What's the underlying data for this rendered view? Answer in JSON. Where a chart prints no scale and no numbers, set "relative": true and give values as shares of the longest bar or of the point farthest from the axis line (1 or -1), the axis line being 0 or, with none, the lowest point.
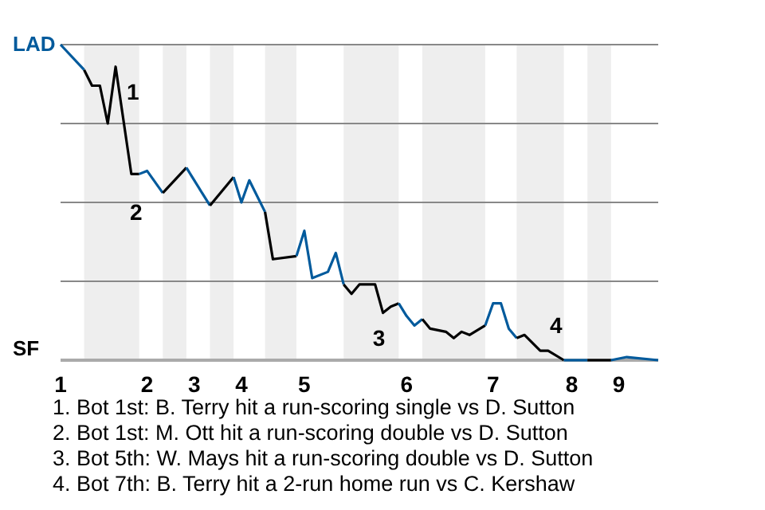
{
  "chart_data": {
    "type": "line",
    "marker": "none",
    "relative": true,
    "categories": [
      "1",
      null,
      null,
      null,
      null,
      null,
      null,
      null,
      null,
      null,
      null,
      "2",
      null,
      null,
      null,
      null,
      null,
      "3",
      null,
      null,
      null,
      null,
      null,
      "4",
      null,
      null,
      null,
      null,
      null,
      null,
      null,
      "5",
      null,
      null,
      null,
      null,
      null,
      null,
      null,
      null,
      null,
      null,
      null,
      null,
      "6",
      null,
      null,
      null,
      null,
      null,
      null,
      null,
      null,
      null,
      null,
      "7",
      null,
      null,
      null,
      null,
      null,
      null,
      null,
      null,
      null,
      "8",
      null,
      null,
      null,
      null,
      null,
      "9",
      null,
      null,
      null,
      null,
      null
    ],
    "series": [
      {
        "color": "#005a9c",
        "values": [
          1,
          null,
          null,
          0.92,
          null,
          null,
          null,
          null,
          null,
          null,
          null,
          null,
          null,
          null,
          null,
          null,
          null,
          null,
          null,
          null,
          null,
          null,
          null,
          null,
          null,
          null,
          null,
          null,
          null,
          null,
          null,
          null,
          null,
          null,
          null,
          null,
          null,
          null,
          null,
          null,
          null,
          null,
          null,
          null,
          null,
          null,
          null,
          null,
          null,
          null,
          null,
          null,
          null,
          null,
          null,
          null,
          null,
          null,
          null,
          null,
          null,
          null,
          null,
          null,
          null,
          null,
          null,
          null,
          null,
          null,
          null,
          null,
          null,
          null,
          null,
          null,
          null
        ]
      },
      {
        "color": "#000000",
        "values": [
          null,
          null,
          null,
          0.92,
          0.87,
          0.87,
          0.75,
          0.93,
          null,
          0.59,
          0.59,
          null,
          null,
          null,
          null,
          null,
          null,
          null,
          null,
          null,
          null,
          null,
          null,
          null,
          null,
          null,
          null,
          null,
          null,
          null,
          null,
          null,
          null,
          null,
          null,
          null,
          null,
          null,
          null,
          null,
          null,
          null,
          null,
          null,
          null,
          null,
          null,
          null,
          null,
          null,
          null,
          null,
          null,
          null,
          null,
          null,
          null,
          null,
          null,
          null,
          null,
          null,
          null,
          null,
          null,
          null,
          null,
          null,
          null,
          null,
          null,
          null,
          null,
          null,
          null,
          null,
          null
        ]
      },
      {
        "color": "#005a9c",
        "values": [
          null,
          null,
          null,
          null,
          null,
          null,
          null,
          null,
          null,
          null,
          0.59,
          0.6,
          null,
          0.53,
          null,
          null,
          null,
          null,
          null,
          null,
          null,
          null,
          null,
          null,
          null,
          null,
          null,
          null,
          null,
          null,
          null,
          null,
          null,
          null,
          null,
          null,
          null,
          null,
          null,
          null,
          null,
          null,
          null,
          null,
          null,
          null,
          null,
          null,
          null,
          null,
          null,
          null,
          null,
          null,
          null,
          null,
          null,
          null,
          null,
          null,
          null,
          null,
          null,
          null,
          null,
          null,
          null,
          null,
          null,
          null,
          null,
          null,
          null,
          null,
          null,
          null,
          null
        ]
      },
      {
        "color": "#000000",
        "values": [
          null,
          null,
          null,
          null,
          null,
          null,
          null,
          null,
          null,
          null,
          null,
          null,
          null,
          0.53,
          null,
          null,
          0.61,
          null,
          null,
          null,
          null,
          null,
          null,
          null,
          null,
          null,
          null,
          null,
          null,
          null,
          null,
          null,
          null,
          null,
          null,
          null,
          null,
          null,
          null,
          null,
          null,
          null,
          null,
          null,
          null,
          null,
          null,
          null,
          null,
          null,
          null,
          null,
          null,
          null,
          null,
          null,
          null,
          null,
          null,
          null,
          null,
          null,
          null,
          null,
          null,
          null,
          null,
          null,
          null,
          null,
          null,
          null,
          null,
          null,
          null,
          null,
          null
        ]
      },
      {
        "color": "#005a9c",
        "values": [
          null,
          null,
          null,
          null,
          null,
          null,
          null,
          null,
          null,
          null,
          null,
          null,
          null,
          null,
          null,
          null,
          0.61,
          null,
          null,
          0.49,
          null,
          null,
          null,
          null,
          null,
          null,
          null,
          null,
          null,
          null,
          null,
          null,
          null,
          null,
          null,
          null,
          null,
          null,
          null,
          null,
          null,
          null,
          null,
          null,
          null,
          null,
          null,
          null,
          null,
          null,
          null,
          null,
          null,
          null,
          null,
          null,
          null,
          null,
          null,
          null,
          null,
          null,
          null,
          null,
          null,
          null,
          null,
          null,
          null,
          null,
          null,
          null,
          null,
          null,
          null,
          null,
          null
        ]
      },
      {
        "color": "#000000",
        "values": [
          null,
          null,
          null,
          null,
          null,
          null,
          null,
          null,
          null,
          null,
          null,
          null,
          null,
          null,
          null,
          null,
          null,
          null,
          null,
          0.49,
          null,
          null,
          0.58,
          null,
          null,
          null,
          null,
          null,
          null,
          null,
          null,
          null,
          null,
          null,
          null,
          null,
          null,
          null,
          null,
          null,
          null,
          null,
          null,
          null,
          null,
          null,
          null,
          null,
          null,
          null,
          null,
          null,
          null,
          null,
          null,
          null,
          null,
          null,
          null,
          null,
          null,
          null,
          null,
          null,
          null,
          null,
          null,
          null,
          null,
          null,
          null,
          null,
          null,
          null,
          null,
          null,
          null
        ]
      },
      {
        "color": "#005a9c",
        "values": [
          null,
          null,
          null,
          null,
          null,
          null,
          null,
          null,
          null,
          null,
          null,
          null,
          null,
          null,
          null,
          null,
          null,
          null,
          null,
          null,
          null,
          null,
          0.58,
          0.5,
          0.57,
          null,
          0.47,
          null,
          null,
          null,
          null,
          null,
          null,
          null,
          null,
          null,
          null,
          null,
          null,
          null,
          null,
          null,
          null,
          null,
          null,
          null,
          null,
          null,
          null,
          null,
          null,
          null,
          null,
          null,
          null,
          null,
          null,
          null,
          null,
          null,
          null,
          null,
          null,
          null,
          null,
          null,
          null,
          null,
          null,
          null,
          null,
          null,
          null,
          null,
          null,
          null,
          null
        ]
      },
      {
        "color": "#000000",
        "values": [
          null,
          null,
          null,
          null,
          null,
          null,
          null,
          null,
          null,
          null,
          null,
          null,
          null,
          null,
          null,
          null,
          null,
          null,
          null,
          null,
          null,
          null,
          null,
          null,
          null,
          null,
          0.47,
          0.32,
          null,
          null,
          0.33,
          null,
          null,
          null,
          null,
          null,
          null,
          null,
          null,
          null,
          null,
          null,
          null,
          null,
          null,
          null,
          null,
          null,
          null,
          null,
          null,
          null,
          null,
          null,
          null,
          null,
          null,
          null,
          null,
          null,
          null,
          null,
          null,
          null,
          null,
          null,
          null,
          null,
          null,
          null,
          null,
          null,
          null,
          null,
          null,
          null,
          null
        ]
      },
      {
        "color": "#005a9c",
        "values": [
          null,
          null,
          null,
          null,
          null,
          null,
          null,
          null,
          null,
          null,
          null,
          null,
          null,
          null,
          null,
          null,
          null,
          null,
          null,
          null,
          null,
          null,
          null,
          null,
          null,
          null,
          null,
          null,
          null,
          null,
          0.33,
          0.41,
          0.26,
          null,
          0.28,
          0.34,
          0.24,
          null,
          null,
          null,
          null,
          null,
          null,
          null,
          null,
          null,
          null,
          null,
          null,
          null,
          null,
          null,
          null,
          null,
          null,
          null,
          null,
          null,
          null,
          null,
          null,
          null,
          null,
          null,
          null,
          null,
          null,
          null,
          null,
          null,
          null,
          null,
          null,
          null,
          null,
          null,
          null
        ]
      },
      {
        "color": "#000000",
        "values": [
          null,
          null,
          null,
          null,
          null,
          null,
          null,
          null,
          null,
          null,
          null,
          null,
          null,
          null,
          null,
          null,
          null,
          null,
          null,
          null,
          null,
          null,
          null,
          null,
          null,
          null,
          null,
          null,
          null,
          null,
          null,
          null,
          null,
          null,
          null,
          null,
          0.24,
          0.21,
          0.24,
          null,
          0.24,
          0.15,
          0.17,
          0.18,
          null,
          null,
          null,
          null,
          null,
          null,
          null,
          null,
          null,
          null,
          null,
          null,
          null,
          null,
          null,
          null,
          null,
          null,
          null,
          null,
          null,
          null,
          null,
          null,
          null,
          null,
          null,
          null,
          null,
          null,
          null,
          null,
          null
        ]
      },
      {
        "color": "#005a9c",
        "values": [
          null,
          null,
          null,
          null,
          null,
          null,
          null,
          null,
          null,
          null,
          null,
          null,
          null,
          null,
          null,
          null,
          null,
          null,
          null,
          null,
          null,
          null,
          null,
          null,
          null,
          null,
          null,
          null,
          null,
          null,
          null,
          null,
          null,
          null,
          null,
          null,
          null,
          null,
          null,
          null,
          null,
          null,
          null,
          0.18,
          0.14,
          0.11,
          0.13,
          null,
          null,
          null,
          null,
          null,
          null,
          null,
          null,
          null,
          null,
          null,
          null,
          null,
          null,
          null,
          null,
          null,
          null,
          null,
          null,
          null,
          null,
          null,
          null,
          null,
          null,
          null,
          null,
          null,
          null
        ]
      },
      {
        "color": "#000000",
        "values": [
          null,
          null,
          null,
          null,
          null,
          null,
          null,
          null,
          null,
          null,
          null,
          null,
          null,
          null,
          null,
          null,
          null,
          null,
          null,
          null,
          null,
          null,
          null,
          null,
          null,
          null,
          null,
          null,
          null,
          null,
          null,
          null,
          null,
          null,
          null,
          null,
          null,
          null,
          null,
          null,
          null,
          null,
          null,
          null,
          null,
          null,
          0.13,
          0.1,
          null,
          0.09,
          0.07,
          0.09,
          0.08,
          null,
          0.11,
          null,
          null,
          null,
          null,
          null,
          null,
          null,
          null,
          null,
          null,
          null,
          null,
          null,
          null,
          null,
          null,
          null,
          null,
          null,
          null,
          null,
          null
        ]
      },
      {
        "color": "#005a9c",
        "values": [
          null,
          null,
          null,
          null,
          null,
          null,
          null,
          null,
          null,
          null,
          null,
          null,
          null,
          null,
          null,
          null,
          null,
          null,
          null,
          null,
          null,
          null,
          null,
          null,
          null,
          null,
          null,
          null,
          null,
          null,
          null,
          null,
          null,
          null,
          null,
          null,
          null,
          null,
          null,
          null,
          null,
          null,
          null,
          null,
          null,
          null,
          null,
          null,
          null,
          null,
          null,
          null,
          null,
          null,
          0.11,
          0.18,
          0.18,
          0.1,
          0.07,
          null,
          null,
          null,
          null,
          null,
          null,
          null,
          null,
          null,
          null,
          null,
          null,
          null,
          null,
          null,
          null,
          null,
          null
        ]
      },
      {
        "color": "#000000",
        "values": [
          null,
          null,
          null,
          null,
          null,
          null,
          null,
          null,
          null,
          null,
          null,
          null,
          null,
          null,
          null,
          null,
          null,
          null,
          null,
          null,
          null,
          null,
          null,
          null,
          null,
          null,
          null,
          null,
          null,
          null,
          null,
          null,
          null,
          null,
          null,
          null,
          null,
          null,
          null,
          null,
          null,
          null,
          null,
          null,
          null,
          null,
          null,
          null,
          null,
          null,
          null,
          null,
          null,
          null,
          null,
          null,
          null,
          null,
          0.07,
          0.08,
          null,
          0.03,
          0.03,
          null,
          0,
          null,
          null,
          null,
          null,
          null,
          null,
          null,
          null,
          null,
          null,
          null,
          null
        ]
      },
      {
        "color": "#005a9c",
        "values": [
          null,
          null,
          null,
          null,
          null,
          null,
          null,
          null,
          null,
          null,
          null,
          null,
          null,
          null,
          null,
          null,
          null,
          null,
          null,
          null,
          null,
          null,
          null,
          null,
          null,
          null,
          null,
          null,
          null,
          null,
          null,
          null,
          null,
          null,
          null,
          null,
          null,
          null,
          null,
          null,
          null,
          null,
          null,
          null,
          null,
          null,
          null,
          null,
          null,
          null,
          null,
          null,
          null,
          null,
          null,
          null,
          null,
          null,
          null,
          null,
          null,
          null,
          null,
          null,
          0,
          null,
          null,
          0,
          null,
          null,
          null,
          null,
          null,
          null,
          null,
          null,
          null
        ]
      },
      {
        "color": "#000000",
        "values": [
          null,
          null,
          null,
          null,
          null,
          null,
          null,
          null,
          null,
          null,
          null,
          null,
          null,
          null,
          null,
          null,
          null,
          null,
          null,
          null,
          null,
          null,
          null,
          null,
          null,
          null,
          null,
          null,
          null,
          null,
          null,
          null,
          null,
          null,
          null,
          null,
          null,
          null,
          null,
          null,
          null,
          null,
          null,
          null,
          null,
          null,
          null,
          null,
          null,
          null,
          null,
          null,
          null,
          null,
          null,
          null,
          null,
          null,
          null,
          null,
          null,
          null,
          null,
          null,
          null,
          null,
          null,
          0,
          null,
          null,
          0,
          null,
          null,
          null,
          null,
          null,
          null
        ]
      },
      {
        "color": "#005a9c",
        "values": [
          null,
          null,
          null,
          null,
          null,
          null,
          null,
          null,
          null,
          null,
          null,
          null,
          null,
          null,
          null,
          null,
          null,
          null,
          null,
          null,
          null,
          null,
          null,
          null,
          null,
          null,
          null,
          null,
          null,
          null,
          null,
          null,
          null,
          null,
          null,
          null,
          null,
          null,
          null,
          null,
          null,
          null,
          null,
          null,
          null,
          null,
          null,
          null,
          null,
          null,
          null,
          null,
          null,
          null,
          null,
          null,
          null,
          null,
          null,
          null,
          null,
          null,
          null,
          null,
          null,
          null,
          null,
          null,
          null,
          null,
          0,
          null,
          0.01,
          null,
          null,
          null,
          0
        ]
      }
    ],
    "annotations": [
      "LAD",
      "SF",
      "1",
      "2",
      "3",
      "4",
      "1. Bot 1st: B. Terry hit a run-scoring single vs D. Sutton",
      "2. Bot 1st: M. Ott hit a run-scoring double vs D. Sutton",
      "3. Bot 5th: W. Mays hit a run-scoring double vs D. Sutton",
      "4. Bot 7th: B. Terry hit a 2-run home run vs C. Kershaw"
    ]
  }
}
